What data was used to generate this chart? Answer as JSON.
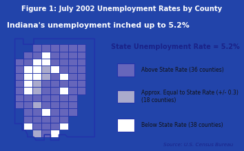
{
  "title": "Figure 1: July 2002 Unemployment Rates by County",
  "subtitle": "Indiana's unemployment inched up to 5.2%",
  "state_rate_text": "State Unemployment Rate = 5.2%",
  "source_text": "Source: U.S. Census Bureau",
  "legend_items": [
    {
      "label": "Above State Rate (36 counties)",
      "color": "#6666bb",
      "edgecolor": "#2233aa"
    },
    {
      "label": "Approx. Equal to State Rate (+/- 0.3)\n(18 counties)",
      "color": "#aaaacc",
      "edgecolor": "#2233aa"
    },
    {
      "label": "Below State Rate (38 counties)",
      "color": "#ffffff",
      "edgecolor": "#2233aa"
    }
  ],
  "title_bg_color": "#2244aa",
  "title_text_color": "#ffffff",
  "subtitle_bg_color": "#c89000",
  "subtitle_text_color": "#ffffff",
  "outer_bg_color": "#2244aa",
  "body_bg_color": "#dde8f5",
  "figsize": [
    3.54,
    2.19
  ],
  "dpi": 100,
  "state_rate_color": "#1a2288",
  "source_color": "#1a2288",
  "legend_text_color": "#111111",
  "indiana_counties": {
    "cols": 9,
    "rows": 13,
    "grid": [
      [
        3,
        3,
        0,
        0,
        0,
        0,
        0,
        0,
        3
      ],
      [
        3,
        0,
        0,
        2,
        0,
        0,
        0,
        0,
        3
      ],
      [
        0,
        0,
        2,
        2,
        0,
        0,
        0,
        0,
        3
      ],
      [
        0,
        2,
        2,
        1,
        2,
        0,
        0,
        0,
        3
      ],
      [
        0,
        2,
        2,
        1,
        0,
        2,
        0,
        0,
        3
      ],
      [
        0,
        2,
        1,
        0,
        0,
        0,
        0,
        0,
        3
      ],
      [
        0,
        2,
        1,
        0,
        0,
        2,
        0,
        0,
        3
      ],
      [
        0,
        0,
        0,
        0,
        0,
        0,
        0,
        3,
        3
      ],
      [
        0,
        0,
        1,
        0,
        0,
        0,
        0,
        3,
        3
      ],
      [
        3,
        0,
        0,
        2,
        0,
        0,
        0,
        3,
        3
      ],
      [
        3,
        0,
        0,
        0,
        0,
        0,
        3,
        3,
        3
      ],
      [
        3,
        2,
        0,
        0,
        0,
        2,
        3,
        3,
        3
      ],
      [
        3,
        3,
        1,
        0,
        2,
        3,
        3,
        3,
        3
      ]
    ]
  }
}
